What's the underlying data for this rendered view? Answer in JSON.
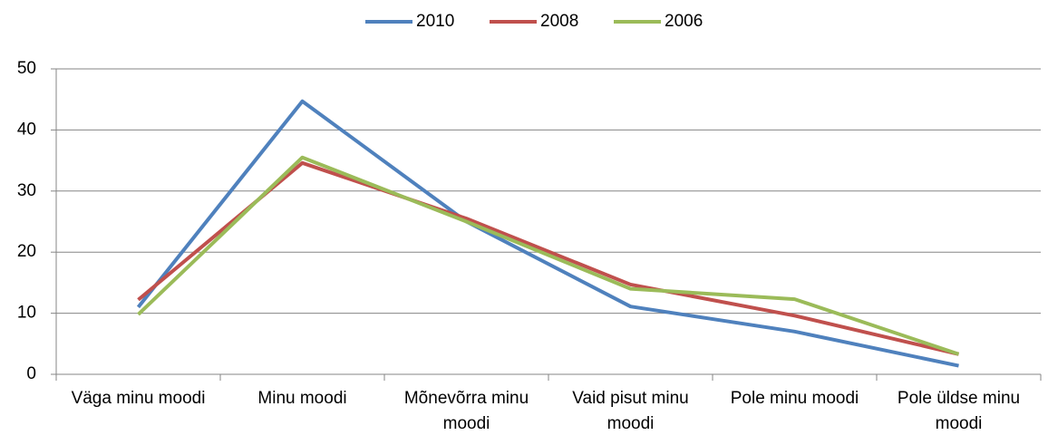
{
  "chart_data": {
    "type": "line",
    "categories": [
      "Väga minu moodi",
      "Minu moodi",
      "Mõnevõrra minu moodi",
      "Vaid pisut minu moodi",
      "Pole minu moodi",
      "Pole üldse minu moodi"
    ],
    "series": [
      {
        "name": "2010",
        "color": "#4f81bd",
        "values": [
          11,
          44.7,
          25,
          11.1,
          7,
          1.4
        ]
      },
      {
        "name": "2008",
        "color": "#c0504d",
        "values": [
          12.2,
          34.6,
          25.5,
          14.7,
          9.6,
          3.3
        ]
      },
      {
        "name": "2006",
        "color": "#9bbb59",
        "values": [
          9.8,
          35.5,
          25,
          14,
          12.3,
          3.3
        ]
      }
    ],
    "ylim": [
      0,
      50
    ],
    "yticks": [
      0,
      10,
      20,
      30,
      40,
      50
    ],
    "grid": true,
    "legend": "top"
  }
}
